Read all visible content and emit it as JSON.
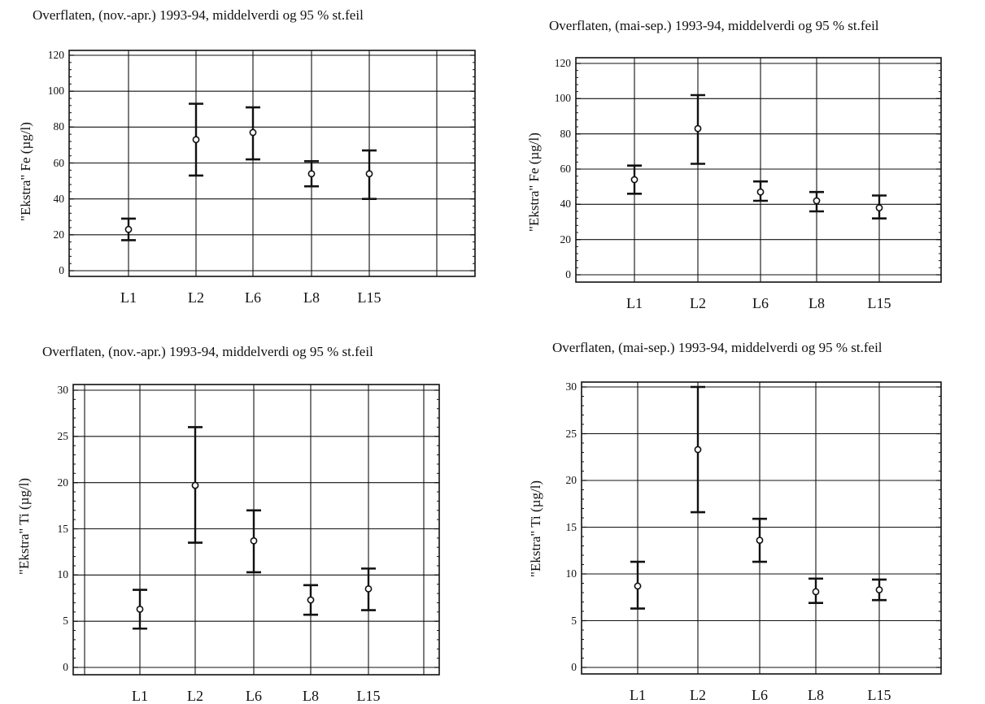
{
  "chart_data": [
    {
      "type": "scatter",
      "title": "Overflaten, (nov.-apr.) 1993-94, middelverdi og 95 % st.feil",
      "ylabel": "\"Ekstra\" Fe (µg/l)",
      "xlabel": "",
      "categories": [
        "L1",
        "L2",
        "L6",
        "L8",
        "L15"
      ],
      "ylim": [
        0,
        120
      ],
      "yticks": [
        "0",
        "20",
        "40",
        "60",
        "80",
        "100",
        "120"
      ],
      "grid": true,
      "series": [
        {
          "mean": [
            23,
            73,
            77,
            54,
            54
          ],
          "lower": [
            17,
            53,
            62,
            47,
            40
          ],
          "upper": [
            29,
            93,
            91,
            61,
            67
          ]
        }
      ]
    },
    {
      "type": "scatter",
      "title": "Overflaten, (mai-sep.) 1993-94, middelverdi og 95 % st.feil",
      "ylabel": "\"Ekstra\" Fe (µg/l)",
      "xlabel": "",
      "categories": [
        "L1",
        "L2",
        "L6",
        "L8",
        "L15"
      ],
      "ylim": [
        0,
        120
      ],
      "yticks": [
        "0",
        "20",
        "40",
        "60",
        "80",
        "100",
        "120"
      ],
      "grid": true,
      "series": [
        {
          "mean": [
            54,
            83,
            47,
            42,
            38
          ],
          "lower": [
            46,
            63,
            42,
            36,
            32
          ],
          "upper": [
            62,
            102,
            53,
            47,
            45
          ]
        }
      ]
    },
    {
      "type": "scatter",
      "title": "Overflaten, (nov.-apr.) 1993-94, middelverdi og 95 % st.feil",
      "ylabel": "\"Ekstra\" Ti (µg/l)",
      "xlabel": "",
      "categories": [
        "L1",
        "L2",
        "L6",
        "L8",
        "L15"
      ],
      "ylim": [
        0,
        30
      ],
      "yticks": [
        "0",
        "5",
        "10",
        "15",
        "20",
        "25",
        "30"
      ],
      "grid": true,
      "series": [
        {
          "mean": [
            6.3,
            19.7,
            13.7,
            7.3,
            8.5
          ],
          "lower": [
            4.2,
            13.5,
            10.3,
            5.7,
            6.2
          ],
          "upper": [
            8.4,
            26.0,
            17.0,
            8.9,
            10.7
          ]
        }
      ]
    },
    {
      "type": "scatter",
      "title": "Overflaten, (mai-sep.) 1993-94, middelverdi og 95 % st.feil",
      "ylabel": "\"Ekstra\" Ti (µg/l)",
      "xlabel": "",
      "categories": [
        "L1",
        "L2",
        "L6",
        "L8",
        "L15"
      ],
      "ylim": [
        0,
        30
      ],
      "yticks": [
        "0",
        "5",
        "10",
        "15",
        "20",
        "25",
        "30"
      ],
      "grid": true,
      "series": [
        {
          "mean": [
            8.7,
            23.3,
            13.6,
            8.1,
            8.3
          ],
          "lower": [
            6.3,
            16.6,
            11.3,
            6.9,
            7.2
          ],
          "upper": [
            11.3,
            30.0,
            15.9,
            9.5,
            9.4
          ]
        }
      ]
    }
  ]
}
